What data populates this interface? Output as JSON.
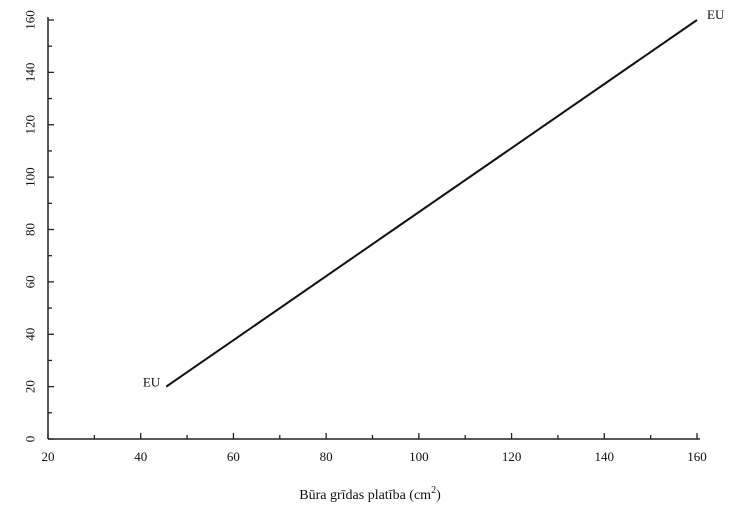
{
  "chart_data": {
    "type": "line",
    "title": "",
    "xlabel": "Būra grīdas platība (cm",
    "xlabel_sup": "2",
    "xlabel_end": ")",
    "ylabel": "",
    "xlim": [
      20,
      160
    ],
    "ylim": [
      0,
      160
    ],
    "x_ticks": [
      20,
      40,
      60,
      80,
      100,
      120,
      140,
      160
    ],
    "y_ticks": [
      0,
      20,
      40,
      60,
      80,
      100,
      120,
      140,
      160
    ],
    "grid": false,
    "series": [
      {
        "x": [
          45.5,
          160
        ],
        "y": [
          20,
          160
        ],
        "color": "#111111"
      }
    ],
    "annotations": [
      {
        "text": "EU",
        "x": 45.5,
        "y": 20,
        "anchor": "end"
      },
      {
        "text": "EU",
        "x": 160,
        "y": 160,
        "anchor": "start"
      }
    ]
  }
}
